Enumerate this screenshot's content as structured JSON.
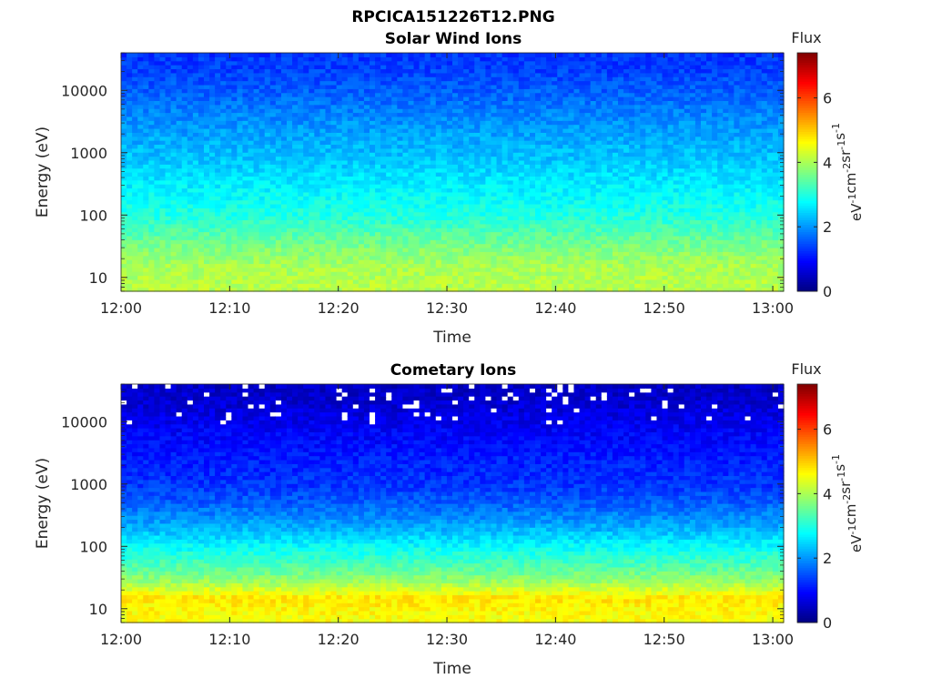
{
  "figure": {
    "title": "RPCICA151226T12.PNG"
  },
  "colorbar": {
    "label": "Flux",
    "unit_parts": [
      "eV",
      "-1",
      "cm",
      "-2",
      "sr",
      "-1",
      "s",
      "-1"
    ],
    "ticks": [
      0,
      2,
      4,
      6
    ],
    "range": [
      0,
      7.4
    ],
    "colormap": "jet"
  },
  "chart_data": [
    {
      "type": "heatmap",
      "title": "Solar Wind Ions",
      "xlabel": "Time",
      "ylabel": "Energy (eV)",
      "y_scale": "log",
      "ylim": [
        6,
        40000
      ],
      "xlim": [
        "12:00",
        "13:01"
      ],
      "x_ticks": [
        "12:00",
        "12:10",
        "12:20",
        "12:30",
        "12:40",
        "12:50",
        "13:00"
      ],
      "y_ticks": [
        10,
        100,
        1000,
        10000
      ],
      "y_tick_labels": [
        "10",
        "100",
        "1000",
        "10000"
      ],
      "log_flux_by_energy": [
        {
          "energy": 8,
          "flux": 4.1
        },
        {
          "energy": 15,
          "flux": 4.0
        },
        {
          "energy": 30,
          "flux": 3.7
        },
        {
          "energy": 60,
          "flux": 3.3
        },
        {
          "energy": 100,
          "flux": 3.0
        },
        {
          "energy": 200,
          "flux": 2.8
        },
        {
          "energy": 500,
          "flux": 2.5
        },
        {
          "energy": 1000,
          "flux": 2.3
        },
        {
          "energy": 3000,
          "flux": 2.0
        },
        {
          "energy": 10000,
          "flux": 1.6
        },
        {
          "energy": 20000,
          "flux": 1.4
        },
        {
          "energy": 40000,
          "flux": 1.3
        }
      ]
    },
    {
      "type": "heatmap",
      "title": "Cometary Ions",
      "xlabel": "Time",
      "ylabel": "Energy (eV)",
      "y_scale": "log",
      "ylim": [
        6,
        40000
      ],
      "xlim": [
        "12:00",
        "13:01"
      ],
      "x_ticks": [
        "12:00",
        "12:10",
        "12:20",
        "12:30",
        "12:40",
        "12:50",
        "13:00"
      ],
      "y_ticks": [
        10,
        100,
        1000,
        10000
      ],
      "y_tick_labels": [
        "10",
        "100",
        "1000",
        "10000"
      ],
      "log_flux_by_energy": [
        {
          "energy": 8,
          "flux": 4.6
        },
        {
          "energy": 15,
          "flux": 4.8
        },
        {
          "energy": 30,
          "flux": 3.8
        },
        {
          "energy": 60,
          "flux": 3.2
        },
        {
          "energy": 100,
          "flux": 2.8
        },
        {
          "energy": 200,
          "flux": 2.2
        },
        {
          "energy": 500,
          "flux": 1.6
        },
        {
          "energy": 1000,
          "flux": 1.3
        },
        {
          "energy": 3000,
          "flux": 1.1
        },
        {
          "energy": 10000,
          "flux": 0.8
        },
        {
          "energy": 20000,
          "flux": 0.6
        },
        {
          "energy": 40000,
          "flux": 0.5
        }
      ],
      "periodic_peak_energy": 15,
      "periodic_peak_flux": 5.2,
      "periodic_peak_minutes": [
        3,
        6.3,
        9.5,
        12.7,
        15.9,
        19,
        22.2,
        25.4,
        28.6,
        31.7,
        34.9,
        38.1,
        41.3,
        44.4,
        47.6,
        50.8,
        54,
        57.1,
        60.3
      ]
    }
  ]
}
